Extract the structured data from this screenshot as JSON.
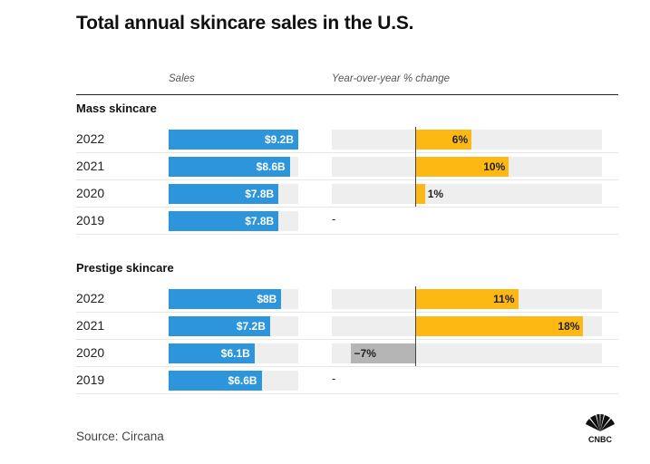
{
  "title": "Total annual skincare sales in the U.S.",
  "col_headers": {
    "sales": "Sales",
    "yoy": "Year-over-year % change"
  },
  "source": "Source: Circana",
  "brand": {
    "name": "CNBC",
    "logo_text": "CNBC"
  },
  "colors": {
    "sales": "#2d95db",
    "positive": "#fdb813",
    "negative": "#b5b5b5",
    "track": "#eeeeee"
  },
  "chart_data": {
    "type": "bar",
    "title": "Total annual skincare sales in the U.S.",
    "sales_max": 9.2,
    "yoy_range": [
      -9,
      20
    ],
    "groups": [
      {
        "name": "Mass skincare",
        "rows": [
          {
            "year": "2022",
            "sales": 9.2,
            "sales_label": "$9.2B",
            "yoy": 6,
            "yoy_label": "6%"
          },
          {
            "year": "2021",
            "sales": 8.6,
            "sales_label": "$8.6B",
            "yoy": 10,
            "yoy_label": "10%"
          },
          {
            "year": "2020",
            "sales": 7.8,
            "sales_label": "$7.8B",
            "yoy": 1,
            "yoy_label": "1%"
          },
          {
            "year": "2019",
            "sales": 7.8,
            "sales_label": "$7.8B",
            "yoy": null,
            "yoy_label": "-"
          }
        ]
      },
      {
        "name": "Prestige skincare",
        "rows": [
          {
            "year": "2022",
            "sales": 8.0,
            "sales_label": "$8B",
            "yoy": 11,
            "yoy_label": "11%"
          },
          {
            "year": "2021",
            "sales": 7.2,
            "sales_label": "$7.2B",
            "yoy": 18,
            "yoy_label": "18%"
          },
          {
            "year": "2020",
            "sales": 6.1,
            "sales_label": "$6.1B",
            "yoy": -7,
            "yoy_label": "−7%"
          },
          {
            "year": "2019",
            "sales": 6.6,
            "sales_label": "$6.6B",
            "yoy": null,
            "yoy_label": "-"
          }
        ]
      }
    ]
  }
}
